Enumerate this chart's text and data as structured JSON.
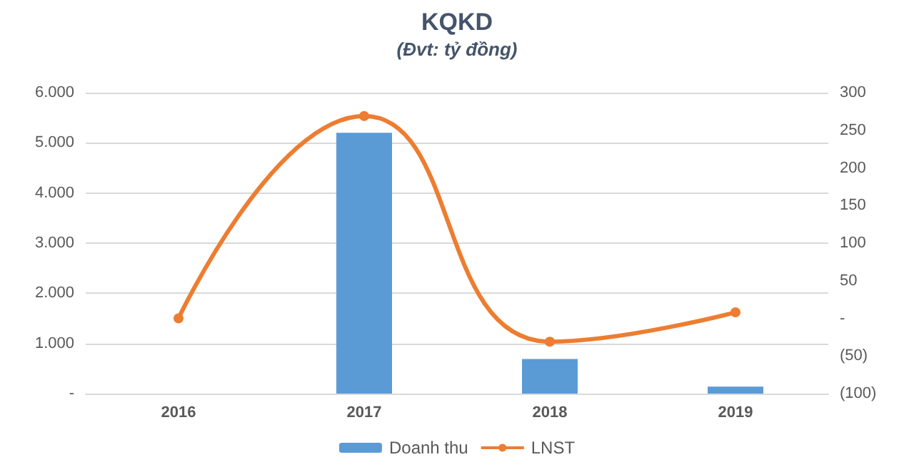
{
  "chart_data": {
    "type": "bar",
    "title": "KQKD",
    "subtitle": "(Đvt: tỷ đồng)",
    "categories": [
      "2016",
      "2017",
      "2018",
      "2019"
    ],
    "series": [
      {
        "name": "Doanh thu",
        "color": "#5b9bd5",
        "values": [
          0,
          5200,
          690,
          140
        ]
      },
      {
        "name": "LNST",
        "type": "line",
        "axis": "y2",
        "color": "#ed7d31",
        "marker": "circle",
        "values": [
          0,
          269,
          -31,
          8
        ]
      }
    ],
    "ylim": [
      0,
      6000
    ],
    "yticks": [
      {
        "value": 0,
        "label": "-"
      },
      {
        "value": 1000,
        "label": "1.000"
      },
      {
        "value": 2000,
        "label": "2.000"
      },
      {
        "value": 3000,
        "label": "3.000"
      },
      {
        "value": 4000,
        "label": "4.000"
      },
      {
        "value": 5000,
        "label": "5.000"
      },
      {
        "value": 6000,
        "label": "6.000"
      }
    ],
    "y2lim": [
      -100,
      300
    ],
    "y2ticks": [
      {
        "value": -100,
        "label": "(100)"
      },
      {
        "value": -50,
        "label": "(50)"
      },
      {
        "value": 0,
        "label": "-"
      },
      {
        "value": 50,
        "label": "50"
      },
      {
        "value": 100,
        "label": "100"
      },
      {
        "value": 150,
        "label": "150"
      },
      {
        "value": 200,
        "label": "200"
      },
      {
        "value": 250,
        "label": "250"
      },
      {
        "value": 300,
        "label": "300"
      }
    ],
    "grid": "y",
    "legend": "bottom"
  }
}
